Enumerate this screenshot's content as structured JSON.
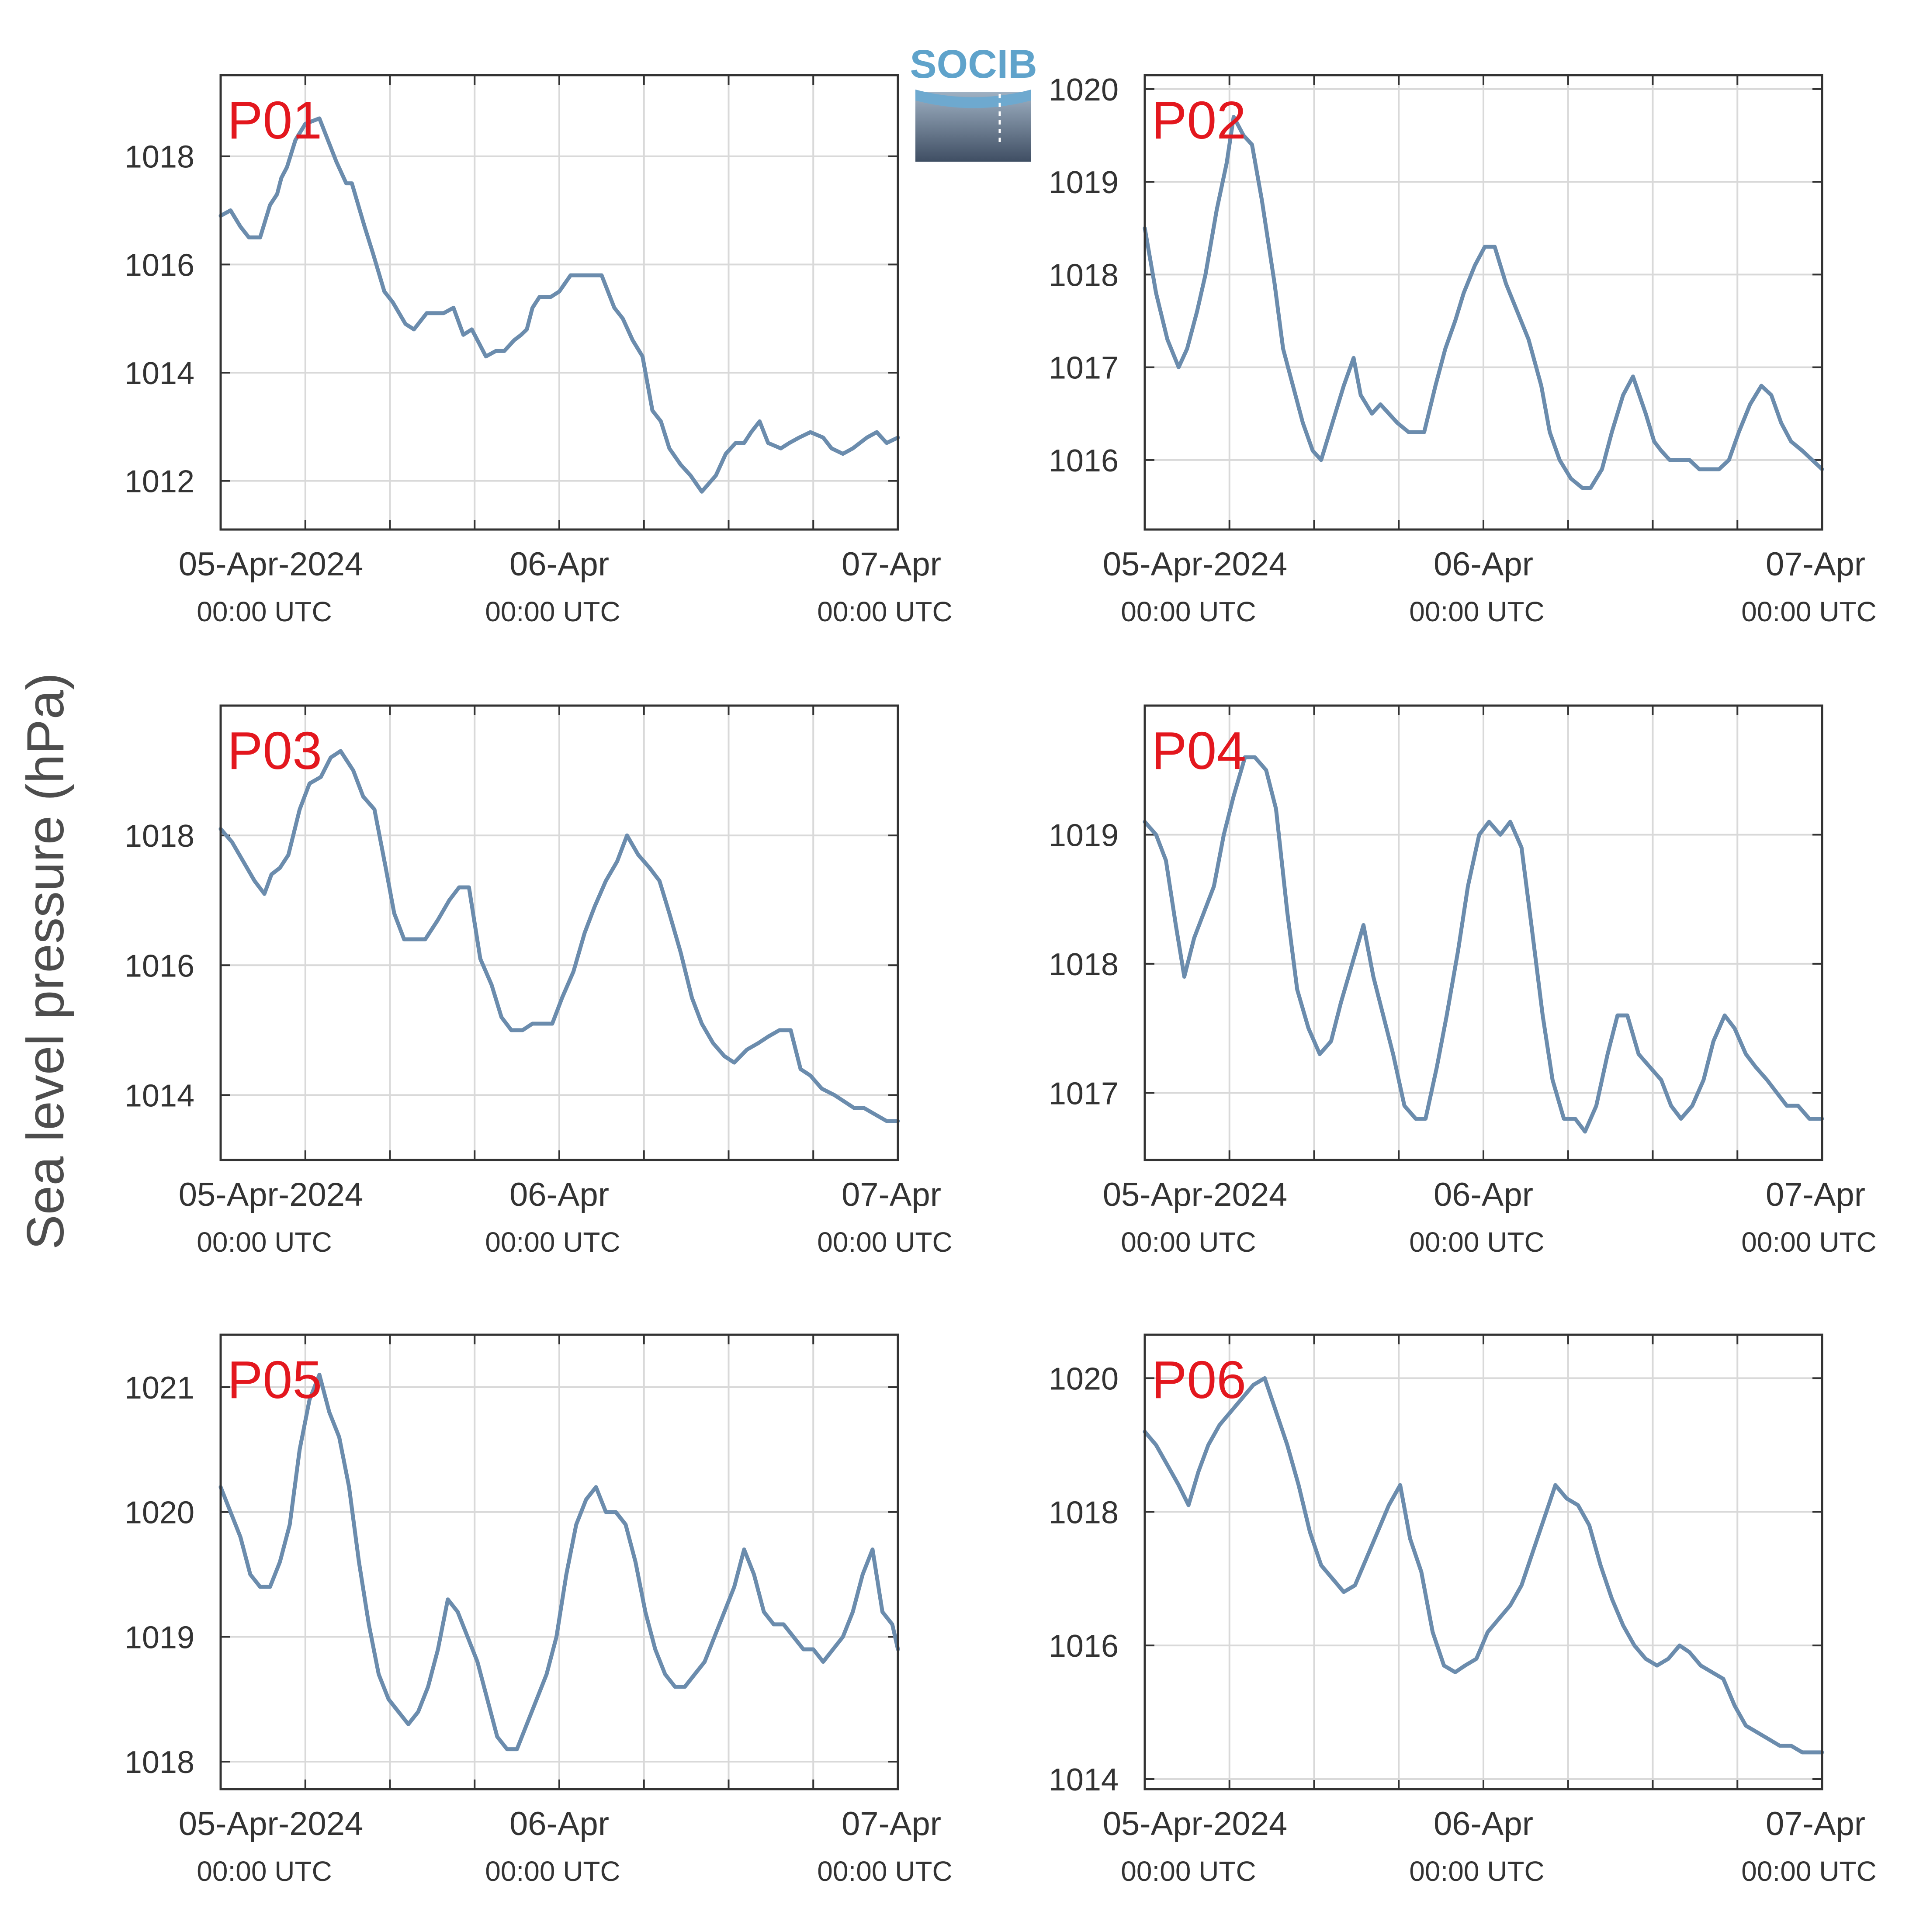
{
  "figure": {
    "ylabel": "Sea level pressure (hPa)",
    "logo_text": "SOCIB",
    "line_color": "#6b8cad",
    "label_color": "#e3171e",
    "frame_color": "#333333",
    "grid_color": "#d9d9d9",
    "text_color": "#333333"
  },
  "chart_data": [
    {
      "type": "line",
      "label": "P01",
      "x_unit": "hours since 05-Apr-2024 00:00 UTC",
      "xlim": [
        0,
        48
      ],
      "x_ticks": [
        0,
        6,
        12,
        18,
        24,
        30,
        36,
        42,
        48
      ],
      "x_tick_labels": [
        {
          "x": 0,
          "date": "05-Apr-2024",
          "time": "00:00 UTC"
        },
        {
          "x": 24,
          "date": "06-Apr",
          "time": "00:00 UTC"
        },
        {
          "x": 48,
          "date": "07-Apr",
          "time": "00:00 UTC"
        }
      ],
      "ylim": [
        1011.1,
        1019.5
      ],
      "y_ticks": [
        1012,
        1014,
        1016,
        1018
      ],
      "x": [
        0,
        0.7,
        1.4,
        2,
        2.8,
        3.5,
        4,
        4.3,
        4.7,
        5.3,
        6,
        7,
        7.6,
        8.2,
        8.9,
        9.3,
        10.2,
        10.8,
        11.6,
        12.2,
        13.1,
        13.7,
        14.6,
        15,
        15.8,
        16.5,
        17.2,
        17.8,
        18.8,
        19.5,
        20.1,
        20.8,
        21.3,
        21.7,
        22.1,
        22.6,
        23.4,
        24,
        24.8,
        25.5,
        26.4,
        27,
        27.9,
        28.5,
        29.2,
        29.9,
        30.6,
        31.2,
        31.8,
        32.6,
        33.3,
        34.1,
        35.1,
        35.8,
        36.5,
        37.1,
        37.6,
        38.2,
        38.8,
        39.7,
        40.3,
        41,
        41.8,
        42.7,
        43.3,
        44.1,
        44.8,
        45.3,
        45.8,
        46.5,
        47.2,
        48
      ],
      "y": [
        1016.9,
        1017,
        1016.7,
        1016.5,
        1016.5,
        1017.1,
        1017.3,
        1017.6,
        1017.8,
        1018.3,
        1018.6,
        1018.7,
        1018.3,
        1017.9,
        1017.5,
        1017.5,
        1016.7,
        1016.2,
        1015.5,
        1015.3,
        1014.9,
        1014.8,
        1015.1,
        1015.1,
        1015.1,
        1015.2,
        1014.7,
        1014.8,
        1014.3,
        1014.4,
        1014.4,
        1014.6,
        1014.7,
        1014.8,
        1015.2,
        1015.4,
        1015.4,
        1015.5,
        1015.8,
        1015.8,
        1015.8,
        1015.8,
        1015.2,
        1015.0,
        1014.6,
        1014.3,
        1013.3,
        1013.1,
        1012.6,
        1012.3,
        1012.1,
        1011.8,
        1012.1,
        1012.5,
        1012.7,
        1012.7,
        1012.9,
        1013.1,
        1012.7,
        1012.6,
        1012.7,
        1012.8,
        1012.9,
        1012.8,
        1012.6,
        1012.5,
        1012.6,
        1012.7,
        1012.8,
        1012.9,
        1012.7,
        1012.8
      ]
    },
    {
      "type": "line",
      "label": "P02",
      "x_unit": "hours since 05-Apr-2024 00:00 UTC",
      "xlim": [
        0,
        48
      ],
      "x_ticks": [
        0,
        6,
        12,
        18,
        24,
        30,
        36,
        42,
        48
      ],
      "x_tick_labels": [
        {
          "x": 0,
          "date": "05-Apr-2024",
          "time": "00:00 UTC"
        },
        {
          "x": 24,
          "date": "06-Apr",
          "time": "00:00 UTC"
        },
        {
          "x": 48,
          "date": "07-Apr",
          "time": "00:00 UTC"
        }
      ],
      "ylim": [
        1015.25,
        1020.15
      ],
      "y_ticks": [
        1016,
        1017,
        1018,
        1019,
        1020
      ],
      "x": [
        0,
        0.8,
        1.6,
        2.4,
        3,
        3.7,
        4.3,
        5.1,
        5.8,
        6.3,
        7,
        7.6,
        8.3,
        9.2,
        9.8,
        10.5,
        11.2,
        11.9,
        12.5,
        13.3,
        14.1,
        14.8,
        15.3,
        16.1,
        16.7,
        17.3,
        17.9,
        18.7,
        19.2,
        19.8,
        20.6,
        21.3,
        22,
        22.6,
        23.4,
        24.1,
        24.8,
        25.6,
        26.4,
        27.2,
        28.1,
        28.7,
        29.4,
        30.2,
        31,
        31.6,
        32.4,
        33.1,
        33.9,
        34.6,
        35.5,
        36.1,
        36.6,
        37.2,
        37.8,
        38.6,
        39.3,
        40,
        40.7,
        41.4,
        42.1,
        42.9,
        43.7,
        44.4,
        45.1,
        45.8,
        46.6,
        47.3,
        48
      ],
      "y": [
        1018.5,
        1017.8,
        1017.3,
        1017.0,
        1017.2,
        1017.6,
        1018.0,
        1018.7,
        1019.2,
        1019.7,
        1019.5,
        1019.4,
        1018.8,
        1017.9,
        1017.2,
        1016.8,
        1016.4,
        1016.1,
        1016.0,
        1016.4,
        1016.8,
        1017.1,
        1016.7,
        1016.5,
        1016.6,
        1016.5,
        1016.4,
        1016.3,
        1016.3,
        1016.3,
        1016.8,
        1017.2,
        1017.5,
        1017.8,
        1018.1,
        1018.3,
        1018.3,
        1017.9,
        1017.6,
        1017.3,
        1016.8,
        1016.3,
        1016.0,
        1015.8,
        1015.7,
        1015.7,
        1015.9,
        1016.3,
        1016.7,
        1016.9,
        1016.5,
        1016.2,
        1016.1,
        1016.0,
        1016.0,
        1016.0,
        1015.9,
        1015.9,
        1015.9,
        1016.0,
        1016.3,
        1016.6,
        1016.8,
        1016.7,
        1016.4,
        1016.2,
        1016.1,
        1016.0,
        1015.9
      ]
    },
    {
      "type": "line",
      "label": "P03",
      "x_unit": "hours since 05-Apr-2024 00:00 UTC",
      "xlim": [
        0,
        48
      ],
      "x_ticks": [
        0,
        6,
        12,
        18,
        24,
        30,
        36,
        42,
        48
      ],
      "x_tick_labels": [
        {
          "x": 0,
          "date": "05-Apr-2024",
          "time": "00:00 UTC"
        },
        {
          "x": 24,
          "date": "06-Apr",
          "time": "00:00 UTC"
        },
        {
          "x": 48,
          "date": "07-Apr",
          "time": "00:00 UTC"
        }
      ],
      "ylim": [
        1013.0,
        1020.0
      ],
      "y_ticks": [
        1014,
        1016,
        1018
      ],
      "x": [
        0,
        0.8,
        1.6,
        2.4,
        3.1,
        3.6,
        4.2,
        4.8,
        5.6,
        6.3,
        7.1,
        7.8,
        8.5,
        9.4,
        10.1,
        10.9,
        11.7,
        12.3,
        13,
        13.8,
        14.5,
        15.4,
        16.2,
        16.9,
        17.6,
        18.4,
        19.2,
        19.9,
        20.6,
        21.4,
        22.1,
        22.8,
        23.5,
        24.2,
        25,
        25.8,
        26.5,
        27.3,
        28.1,
        28.8,
        29.6,
        30.4,
        31.1,
        31.8,
        32.6,
        33.4,
        34.1,
        34.9,
        35.7,
        36.4,
        37.3,
        38.1,
        38.8,
        39.6,
        40.4,
        41.1,
        41.8,
        42.6,
        43.5,
        44.2,
        44.9,
        45.6,
        46.4,
        47.2,
        48
      ],
      "y": [
        1018.1,
        1017.9,
        1017.6,
        1017.3,
        1017.1,
        1017.4,
        1017.5,
        1017.7,
        1018.4,
        1018.8,
        1018.9,
        1019.2,
        1019.3,
        1019.0,
        1018.6,
        1018.4,
        1017.5,
        1016.8,
        1016.4,
        1016.4,
        1016.4,
        1016.7,
        1017.0,
        1017.2,
        1017.2,
        1016.1,
        1015.7,
        1015.2,
        1015.0,
        1015.0,
        1015.1,
        1015.1,
        1015.1,
        1015.5,
        1015.9,
        1016.5,
        1016.9,
        1017.3,
        1017.6,
        1018.0,
        1017.7,
        1017.5,
        1017.3,
        1016.8,
        1016.2,
        1015.5,
        1015.1,
        1014.8,
        1014.6,
        1014.5,
        1014.7,
        1014.8,
        1014.9,
        1015.0,
        1015.0,
        1014.4,
        1014.3,
        1014.1,
        1014.0,
        1013.9,
        1013.8,
        1013.8,
        1013.7,
        1013.6,
        1013.6
      ]
    },
    {
      "type": "line",
      "label": "P04",
      "x_unit": "hours since 05-Apr-2024 00:00 UTC",
      "xlim": [
        0,
        48
      ],
      "x_ticks": [
        0,
        6,
        12,
        18,
        24,
        30,
        36,
        42,
        48
      ],
      "x_tick_labels": [
        {
          "x": 0,
          "date": "05-Apr-2024",
          "time": "00:00 UTC"
        },
        {
          "x": 24,
          "date": "06-Apr",
          "time": "00:00 UTC"
        },
        {
          "x": 48,
          "date": "07-Apr",
          "time": "00:00 UTC"
        }
      ],
      "ylim": [
        1016.48,
        1020.0
      ],
      "y_ticks": [
        1017,
        1018,
        1019
      ],
      "x": [
        0,
        0.8,
        1.5,
        2.2,
        2.8,
        3.5,
        4.2,
        4.9,
        5.6,
        6.3,
        7.1,
        7.8,
        8.6,
        9.3,
        10.1,
        10.8,
        11.6,
        12.4,
        13.2,
        13.9,
        14.7,
        15.5,
        16.2,
        16.9,
        17.6,
        18.4,
        19.2,
        19.9,
        20.7,
        21.4,
        22.2,
        22.9,
        23.7,
        24.4,
        25.2,
        25.9,
        26.7,
        27.4,
        28.2,
        28.9,
        29.7,
        30.5,
        31.2,
        32,
        32.8,
        33.5,
        34.2,
        35,
        35.8,
        36.6,
        37.3,
        38,
        38.8,
        39.6,
        40.3,
        41.1,
        41.8,
        42.6,
        43.3,
        44.1,
        44.8,
        45.5,
        46.3,
        47.1,
        48
      ],
      "y": [
        1019.1,
        1019.0,
        1018.8,
        1018.3,
        1017.9,
        1018.2,
        1018.4,
        1018.6,
        1019.0,
        1019.3,
        1019.6,
        1019.6,
        1019.5,
        1019.2,
        1018.4,
        1017.8,
        1017.5,
        1017.3,
        1017.4,
        1017.7,
        1018.0,
        1018.3,
        1017.9,
        1017.6,
        1017.3,
        1016.9,
        1016.8,
        1016.8,
        1017.2,
        1017.6,
        1018.1,
        1018.6,
        1019.0,
        1019.1,
        1019.0,
        1019.1,
        1018.9,
        1018.3,
        1017.6,
        1017.1,
        1016.8,
        1016.8,
        1016.7,
        1016.9,
        1017.3,
        1017.6,
        1017.6,
        1017.3,
        1017.2,
        1017.1,
        1016.9,
        1016.8,
        1016.9,
        1017.1,
        1017.4,
        1017.6,
        1017.5,
        1017.3,
        1017.2,
        1017.1,
        1017.0,
        1016.9,
        1016.9,
        1016.8,
        1016.8
      ]
    },
    {
      "type": "line",
      "label": "P05",
      "x_unit": "hours since 05-Apr-2024 00:00 UTC",
      "xlim": [
        0,
        48
      ],
      "x_ticks": [
        0,
        6,
        12,
        18,
        24,
        30,
        36,
        42,
        48
      ],
      "x_tick_labels": [
        {
          "x": 0,
          "date": "05-Apr-2024",
          "time": "00:00 UTC"
        },
        {
          "x": 24,
          "date": "06-Apr",
          "time": "00:00 UTC"
        },
        {
          "x": 48,
          "date": "07-Apr",
          "time": "00:00 UTC"
        }
      ],
      "ylim": [
        1017.78,
        1021.42
      ],
      "y_ticks": [
        1018,
        1019,
        1020,
        1021
      ],
      "x": [
        0,
        0.7,
        1.4,
        2.1,
        2.8,
        3.5,
        4.2,
        4.9,
        5.6,
        6.3,
        7,
        7.7,
        8.4,
        9.1,
        9.8,
        10.5,
        11.2,
        11.9,
        12.6,
        13.3,
        14,
        14.7,
        15.4,
        16.1,
        16.8,
        17.5,
        18.2,
        18.9,
        19.6,
        20.3,
        21,
        21.7,
        22.4,
        23.1,
        23.8,
        24.5,
        25.2,
        25.9,
        26.6,
        27.3,
        28,
        28.7,
        29.4,
        30.1,
        30.8,
        31.5,
        32.2,
        32.9,
        33.6,
        34.3,
        35,
        35.7,
        36.4,
        37.1,
        37.8,
        38.5,
        39.2,
        39.9,
        40.6,
        41.3,
        42,
        42.7,
        43.4,
        44.1,
        44.8,
        45.5,
        46.2,
        46.9,
        47.6,
        48
      ],
      "y": [
        1020.2,
        1020.0,
        1019.8,
        1019.5,
        1019.4,
        1019.4,
        1019.6,
        1019.9,
        1020.5,
        1020.9,
        1021.1,
        1020.8,
        1020.6,
        1020.2,
        1019.6,
        1019.1,
        1018.7,
        1018.5,
        1018.4,
        1018.3,
        1018.4,
        1018.6,
        1018.9,
        1019.3,
        1019.2,
        1019.0,
        1018.8,
        1018.5,
        1018.2,
        1018.1,
        1018.1,
        1018.3,
        1018.5,
        1018.7,
        1019.0,
        1019.5,
        1019.9,
        1020.1,
        1020.2,
        1020.0,
        1020.0,
        1019.9,
        1019.6,
        1019.2,
        1018.9,
        1018.7,
        1018.6,
        1018.6,
        1018.7,
        1018.8,
        1019.0,
        1019.2,
        1019.4,
        1019.7,
        1019.5,
        1019.2,
        1019.1,
        1019.1,
        1019.0,
        1018.9,
        1018.9,
        1018.8,
        1018.9,
        1019.0,
        1019.2,
        1019.5,
        1019.7,
        1019.2,
        1019.1,
        1018.9
      ]
    },
    {
      "type": "line",
      "label": "P06",
      "x_unit": "hours since 05-Apr-2024 00:00 UTC",
      "xlim": [
        0,
        48
      ],
      "x_ticks": [
        0,
        6,
        12,
        18,
        24,
        30,
        36,
        42,
        48
      ],
      "x_tick_labels": [
        {
          "x": 0,
          "date": "05-Apr-2024",
          "time": "00:00 UTC"
        },
        {
          "x": 24,
          "date": "06-Apr",
          "time": "00:00 UTC"
        },
        {
          "x": 48,
          "date": "07-Apr",
          "time": "00:00 UTC"
        }
      ],
      "ylim": [
        1013.85,
        1020.65
      ],
      "y_ticks": [
        1014,
        1016,
        1018,
        1020
      ],
      "x": [
        0,
        0.8,
        1.6,
        2.4,
        3.1,
        3.8,
        4.5,
        5.3,
        6.1,
        6.9,
        7.7,
        8.5,
        9.3,
        10.1,
        10.9,
        11.7,
        12.5,
        13.3,
        14.1,
        14.9,
        15.7,
        16.5,
        17.3,
        18.1,
        18.8,
        19.6,
        20.4,
        21.2,
        22,
        22.7,
        23.5,
        24.3,
        25.1,
        25.9,
        26.7,
        27.5,
        28.3,
        29.1,
        29.9,
        30.7,
        31.5,
        32.3,
        33.1,
        33.9,
        34.7,
        35.5,
        36.3,
        37.1,
        37.9,
        38.6,
        39.4,
        40.2,
        41,
        41.8,
        42.6,
        43.4,
        44.2,
        45,
        45.8,
        46.6,
        47.3,
        48
      ],
      "y": [
        1019.2,
        1019.0,
        1018.7,
        1018.4,
        1018.1,
        1018.6,
        1019.0,
        1019.3,
        1019.5,
        1019.7,
        1019.9,
        1020.0,
        1019.5,
        1019.0,
        1018.4,
        1017.7,
        1017.2,
        1017.0,
        1016.8,
        1016.9,
        1017.3,
        1017.7,
        1018.1,
        1018.4,
        1017.6,
        1017.1,
        1016.2,
        1015.7,
        1015.6,
        1015.7,
        1015.8,
        1016.2,
        1016.4,
        1016.6,
        1016.9,
        1017.4,
        1017.9,
        1018.4,
        1018.2,
        1018.1,
        1017.8,
        1017.2,
        1016.7,
        1016.3,
        1016.0,
        1015.8,
        1015.7,
        1015.8,
        1016.0,
        1015.9,
        1015.7,
        1015.6,
        1015.5,
        1015.1,
        1014.8,
        1014.7,
        1014.6,
        1014.5,
        1014.5,
        1014.4,
        1014.4,
        1014.4
      ]
    }
  ]
}
